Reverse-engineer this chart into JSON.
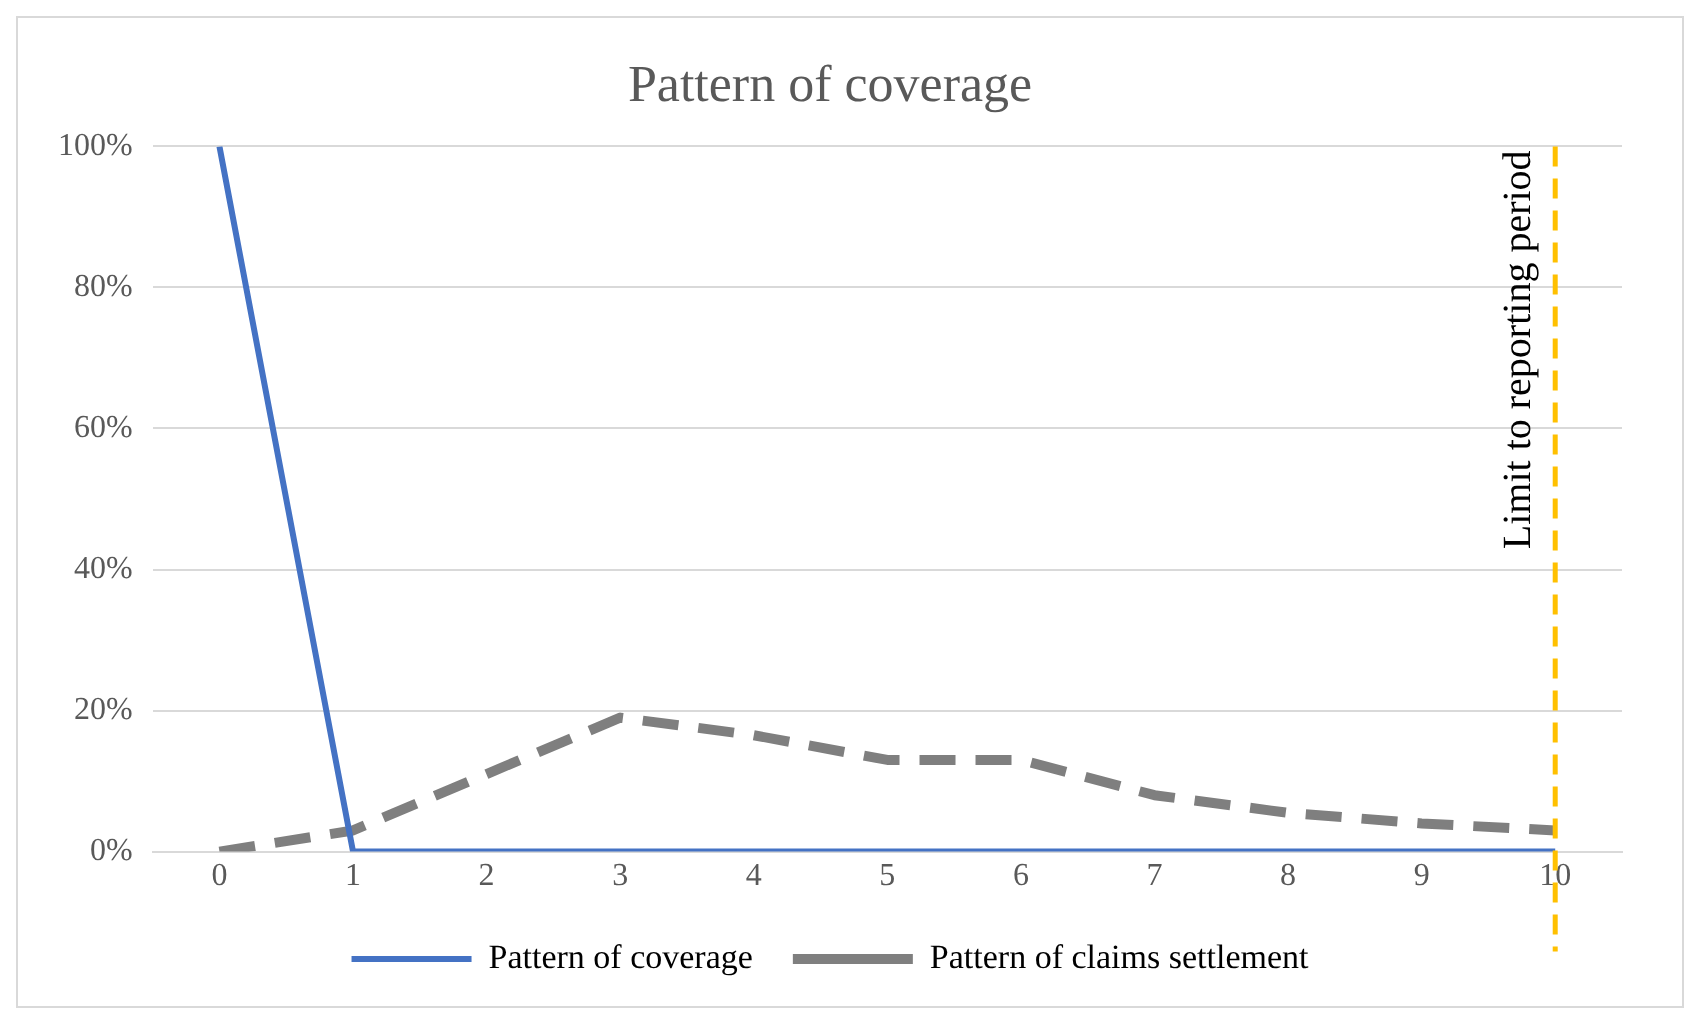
{
  "chart_data": {
    "type": "line",
    "title": "Pattern of coverage",
    "x": [
      0,
      1,
      2,
      3,
      4,
      5,
      6,
      7,
      8,
      9,
      10
    ],
    "xlim": [
      -0.5,
      10.5
    ],
    "xticks": [
      0,
      1,
      2,
      3,
      4,
      5,
      6,
      7,
      8,
      9,
      10
    ],
    "ylim": [
      0,
      100
    ],
    "yticks": [
      {
        "value": 0,
        "label": "0%"
      },
      {
        "value": 20,
        "label": "20%"
      },
      {
        "value": 40,
        "label": "40%"
      },
      {
        "value": 60,
        "label": "60%"
      },
      {
        "value": 80,
        "label": "80%"
      },
      {
        "value": 100,
        "label": "100%"
      }
    ],
    "grid": "y",
    "legend": "bottom",
    "marker": "none",
    "series": [
      {
        "name": "Pattern of coverage",
        "color": "#4472c4",
        "line_style": "solid",
        "values": [
          100,
          0,
          0,
          0,
          0,
          0,
          0,
          0,
          0,
          0,
          0
        ]
      },
      {
        "name": "Pattern of claims settlement",
        "color": "#7f7f7f",
        "line_style": "dashed",
        "values": [
          0,
          3,
          11,
          19,
          16.5,
          13,
          13,
          8,
          5.5,
          4,
          3
        ]
      }
    ],
    "ref_lines": [
      {
        "axis": "x",
        "value": 10,
        "label": "Limit to reporting period",
        "color": "#ffc000",
        "line_style": "dashed"
      }
    ]
  }
}
